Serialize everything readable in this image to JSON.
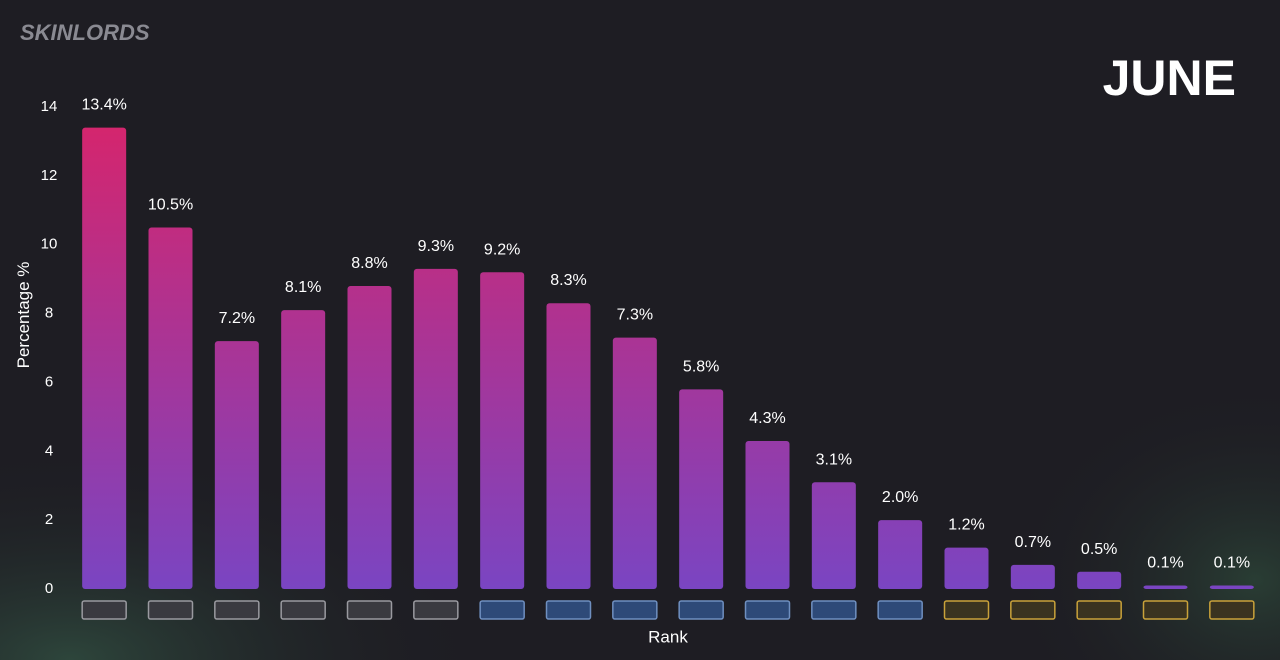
{
  "brand": "SKINLORDS",
  "chart_data": {
    "type": "bar",
    "title": "JUNE",
    "y_label": "Percentage %",
    "x_label": "Rank",
    "categories": [
      null,
      null,
      null,
      null,
      null,
      null,
      null,
      null,
      null,
      null,
      null,
      null,
      null,
      null,
      null,
      null,
      null,
      null
    ],
    "values": [
      13.4,
      10.5,
      7.2,
      8.1,
      8.8,
      9.3,
      9.2,
      8.3,
      7.3,
      5.8,
      4.3,
      3.1,
      2.0,
      1.2,
      0.7,
      0.5,
      0.1,
      0.1
    ],
    "value_labels": [
      "13.4%",
      "10.5%",
      "7.2%",
      "8.1%",
      "8.8%",
      "9.3%",
      "9.2%",
      "8.3%",
      "7.3%",
      "5.8%",
      "4.3%",
      "3.1%",
      "2.0%",
      "1.2%",
      "0.7%",
      "0.5%",
      "0.1%",
      "0.1%"
    ],
    "color": [
      "#d8246a",
      "#7a45c2"
    ],
    "ylim": [
      0,
      14
    ],
    "yticks": [
      0,
      2,
      4,
      6,
      8,
      10,
      12,
      14
    ],
    "grid": false
  }
}
